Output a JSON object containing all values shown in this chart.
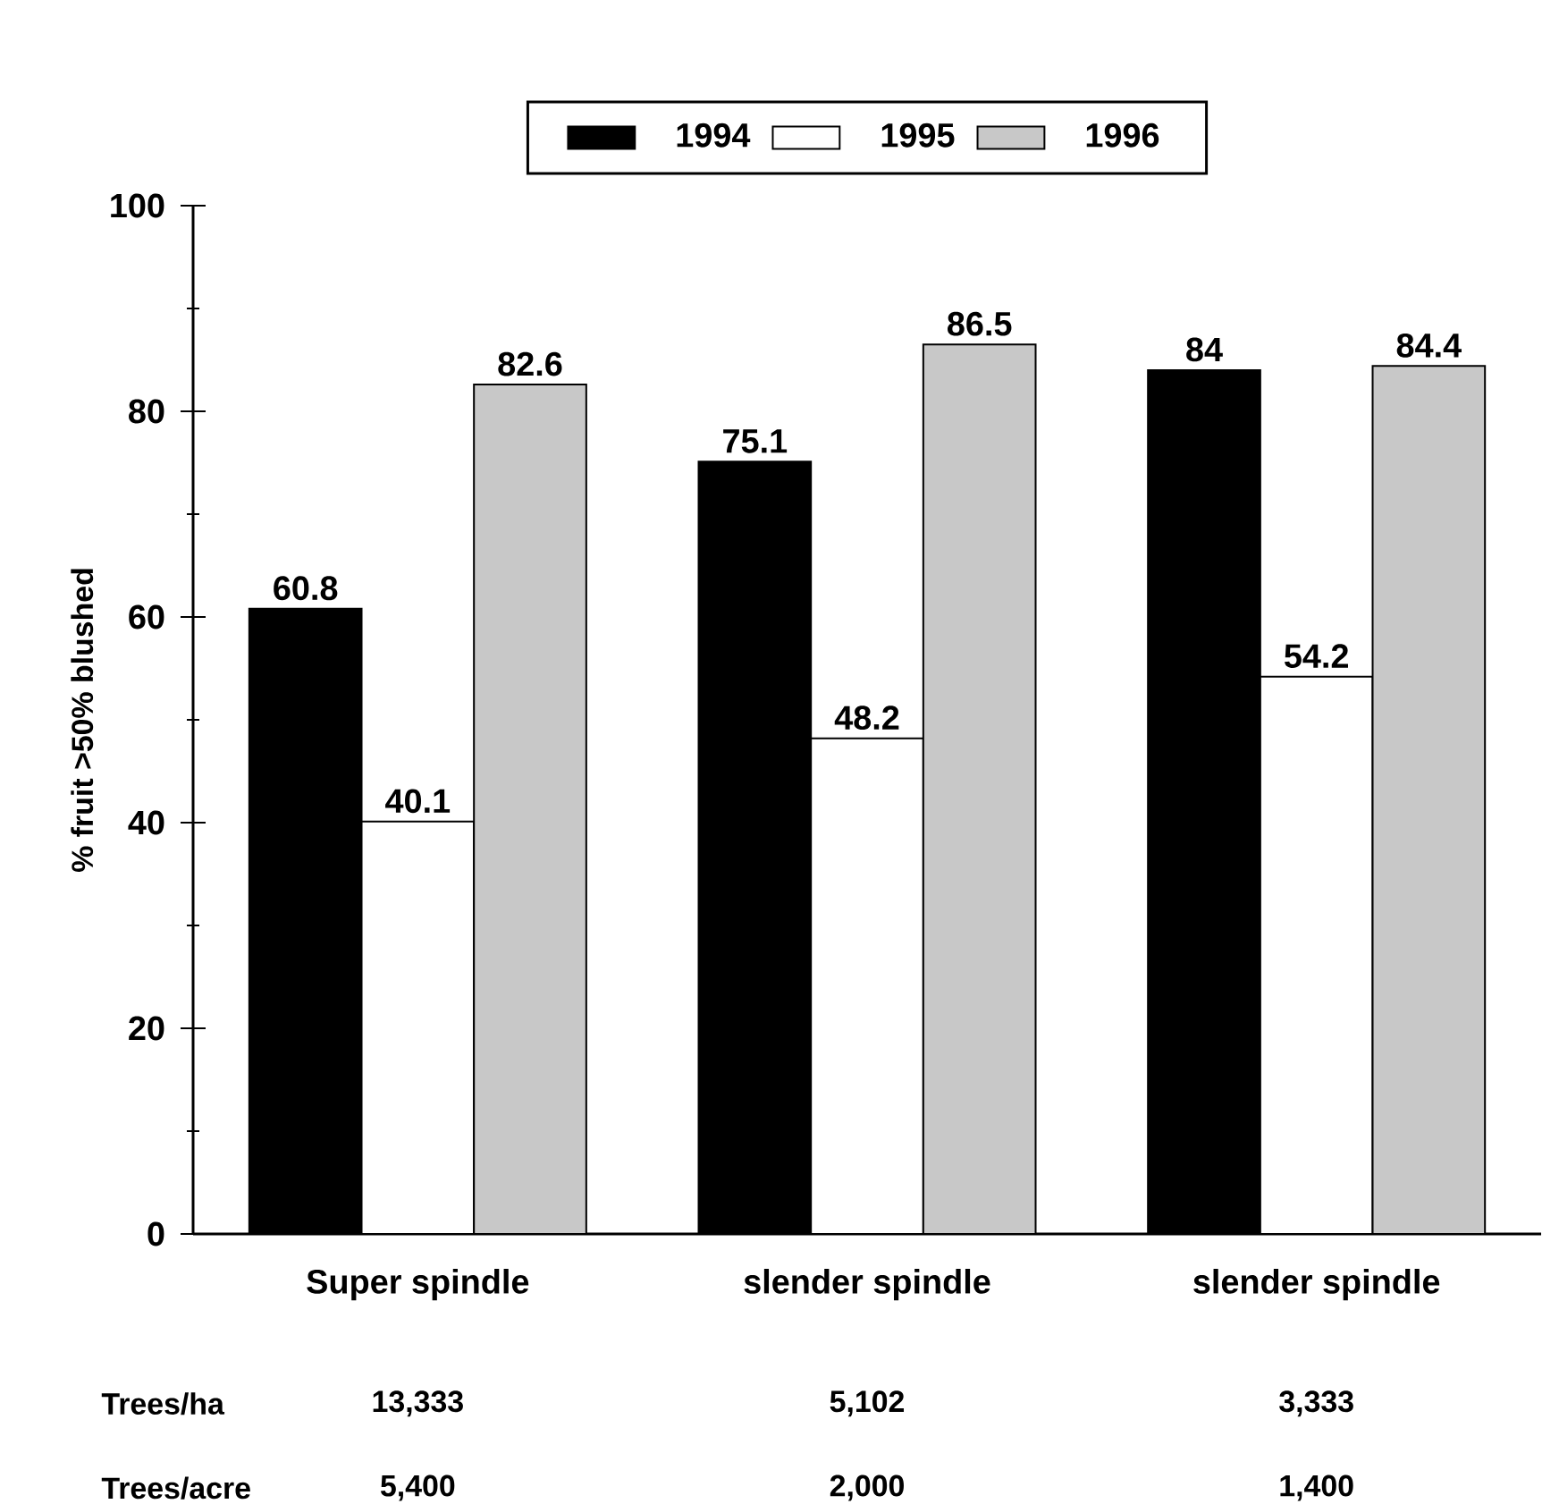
{
  "chart_data": {
    "type": "bar",
    "ylabel": "% fruit >50% blushed",
    "categories": [
      "Super spindle",
      "slender spindle",
      "slender spindle"
    ],
    "series": [
      {
        "name": "1994",
        "color": "#000000",
        "values": [
          60.8,
          75.1,
          84
        ]
      },
      {
        "name": "1995",
        "color": "#ffffff",
        "values": [
          40.1,
          48.2,
          54.2
        ]
      },
      {
        "name": "1996",
        "color": "#c8c8c8",
        "values": [
          82.6,
          86.5,
          84.4
        ]
      }
    ],
    "ylim": [
      0,
      100
    ],
    "yticks": [
      0,
      20,
      40,
      60,
      80,
      100
    ],
    "data_labels": true,
    "legend": "top",
    "annotations": [
      "Trees/ha",
      "13,333",
      "5,102",
      "3,333",
      "Trees/acre",
      "5,400",
      "2,000",
      "1,400"
    ]
  }
}
